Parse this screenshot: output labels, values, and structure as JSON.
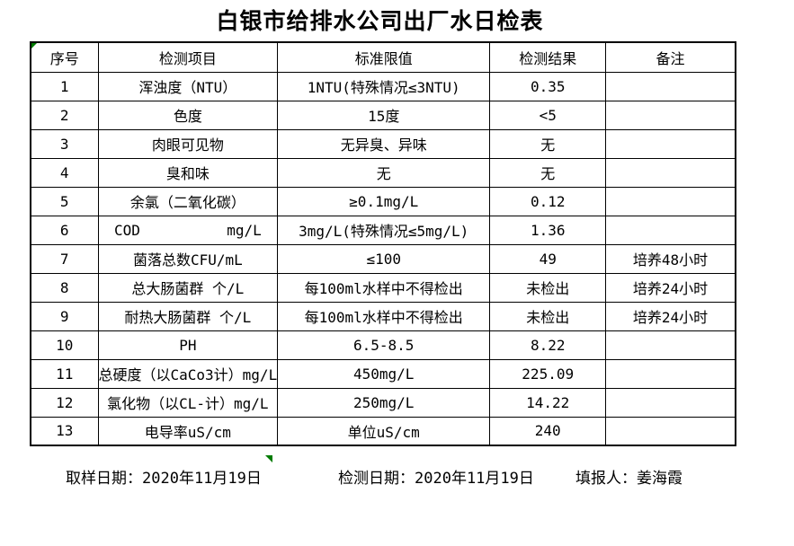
{
  "title": "白银市给排水公司出厂水日检表",
  "table": {
    "headers": [
      "序号",
      "检测项目",
      "标准限值",
      "检测结果",
      "备注"
    ],
    "rows": [
      {
        "no": "1",
        "item": "浑浊度（NTU）",
        "limit": "1NTU(特殊情况≤3NTU)",
        "result": "0.35",
        "remark": ""
      },
      {
        "no": "2",
        "item": "色度",
        "limit": "15度",
        "result": "<5",
        "remark": ""
      },
      {
        "no": "3",
        "item": "肉眼可见物",
        "limit": "无异臭、异味",
        "result": "无",
        "remark": ""
      },
      {
        "no": "4",
        "item": "臭和味",
        "limit": "无",
        "result": "无",
        "remark": ""
      },
      {
        "no": "5",
        "item": "余氯（二氧化碳）",
        "limit": "≥0.1mg/L",
        "result": "0.12",
        "remark": ""
      },
      {
        "no": "6",
        "item": "COD          mg/L",
        "limit": "3mg/L(特殊情况≤5mg/L)",
        "result": "1.36",
        "remark": ""
      },
      {
        "no": "7",
        "item": "菌落总数CFU/mL",
        "limit": "≤100",
        "result": "49",
        "remark": "培养48小时"
      },
      {
        "no": "8",
        "item": "总大肠菌群 个/L",
        "limit": "每100ml水样中不得检出",
        "result": "未检出",
        "remark": "培养24小时"
      },
      {
        "no": "9",
        "item": "耐热大肠菌群 个/L",
        "limit": "每100ml水样中不得检出",
        "result": "未检出",
        "remark": "培养24小时"
      },
      {
        "no": "10",
        "item": "PH",
        "limit": "6.5-8.5",
        "result": "8.22",
        "remark": ""
      },
      {
        "no": "11",
        "item": "总硬度（以CaCo3计）mg/L",
        "limit": "450mg/L",
        "result": "225.09",
        "remark": ""
      },
      {
        "no": "12",
        "item": "氯化物（以CL-计）mg/L",
        "limit": "250mg/L",
        "result": "14.22",
        "remark": ""
      },
      {
        "no": "13",
        "item": "电导率uS/cm",
        "limit": "单位uS/cm",
        "result": "240",
        "remark": ""
      }
    ]
  },
  "footer": {
    "sampling_date": "取样日期：2020年11月19日",
    "test_date": "检测日期：2020年11月19日",
    "reporter": "填报人：姜海霞"
  },
  "colors": {
    "background": "#ffffff",
    "text": "#000000",
    "border": "#000000",
    "marker_green": "#007b00"
  }
}
